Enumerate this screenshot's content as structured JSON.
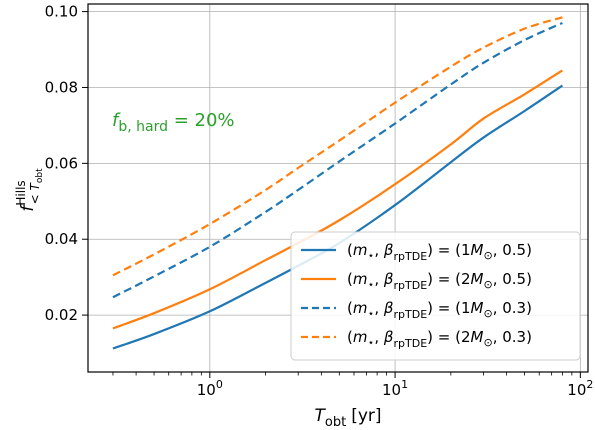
{
  "chart_data": {
    "type": "line",
    "xscale": "log",
    "xlim": [
      0.22,
      110
    ],
    "ylim": [
      0.005,
      0.102
    ],
    "grid": true,
    "x_ticks": [
      {
        "value": 1,
        "base": "10",
        "exp": "0"
      },
      {
        "value": 10,
        "base": "10",
        "exp": "1"
      },
      {
        "value": 100,
        "base": "10",
        "exp": "2"
      }
    ],
    "y_ticks": [
      {
        "value": 0.02,
        "label": "0.02"
      },
      {
        "value": 0.04,
        "label": "0.04"
      },
      {
        "value": 0.06,
        "label": "0.06"
      },
      {
        "value": 0.08,
        "label": "0.08"
      },
      {
        "value": 0.1,
        "label": "0.10"
      }
    ],
    "xlabel": {
      "main": "T",
      "sub": "obt",
      "unit": "[yr]"
    },
    "ylabel": {
      "main": "f",
      "sup": "Hills",
      "sub": "< T",
      "subsub": "obt"
    },
    "annotation": {
      "main": "f",
      "sub": "b, hard",
      "rest": " = 20%",
      "color": "#2ca02c"
    },
    "legend_position": "lower-right",
    "x": [
      0.3,
      0.5,
      1,
      2,
      3,
      5,
      10,
      20,
      30,
      50,
      80
    ],
    "series": [
      {
        "name_parts": {
          "lhs": "(m",
          "star": "⋆",
          "beta": "β",
          "beta_sub": "rpTDE",
          "mass": "1M",
          "sun": "⊙",
          "val": "0.5"
        },
        "color": "#1f77b4",
        "dash": "solid",
        "values": [
          0.0112,
          0.015,
          0.021,
          0.0285,
          0.033,
          0.039,
          0.049,
          0.0603,
          0.0668,
          0.0738,
          0.0805
        ]
      },
      {
        "name_parts": {
          "lhs": "(m",
          "star": "⋆",
          "beta": "β",
          "beta_sub": "rpTDE",
          "mass": "2M",
          "sun": "⊙",
          "val": "0.5"
        },
        "color": "#ff7f0e",
        "dash": "solid",
        "values": [
          0.0165,
          0.0205,
          0.0268,
          0.0345,
          0.039,
          0.045,
          0.0545,
          0.065,
          0.0718,
          0.0782,
          0.0845
        ]
      },
      {
        "name_parts": {
          "lhs": "(m",
          "star": "⋆",
          "beta": "β",
          "beta_sub": "rpTDE",
          "mass": "1M",
          "sun": "⊙",
          "val": "0.3"
        },
        "color": "#1f77b4",
        "dash": "dashed",
        "values": [
          0.0247,
          0.0302,
          0.038,
          0.0472,
          0.053,
          0.0605,
          0.0705,
          0.0808,
          0.0865,
          0.0925,
          0.097
        ]
      },
      {
        "name_parts": {
          "lhs": "(m",
          "star": "⋆",
          "beta": "β",
          "beta_sub": "rpTDE",
          "mass": "2M",
          "sun": "⊙",
          "val": "0.3"
        },
        "color": "#ff7f0e",
        "dash": "dashed",
        "values": [
          0.0305,
          0.036,
          0.044,
          0.053,
          0.0588,
          0.066,
          0.076,
          0.0855,
          0.0905,
          0.0955,
          0.0985
        ]
      }
    ]
  }
}
